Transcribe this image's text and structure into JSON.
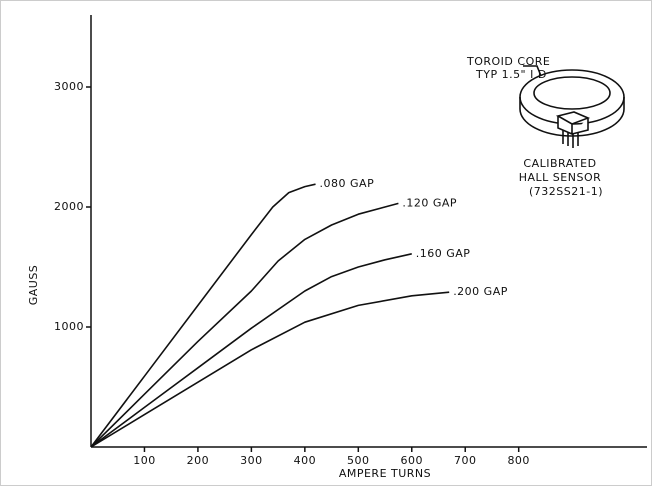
{
  "chart_data": {
    "type": "line",
    "x_label": "AMPERE TURNS",
    "y_label": "GAUSS",
    "xlim": [
      0,
      1040
    ],
    "ylim": [
      0,
      3600
    ],
    "xticks": [
      100,
      200,
      300,
      400,
      500,
      600,
      700,
      800
    ],
    "yticks": [
      1000,
      2000,
      3000
    ],
    "series": [
      {
        "name": ".080 GAP",
        "color": "#111111",
        "x": [
          0,
          100,
          200,
          300,
          340,
          370,
          400,
          420
        ],
        "values": [
          0,
          590,
          1180,
          1770,
          2000,
          2120,
          2170,
          2190
        ]
      },
      {
        "name": ".120 GAP",
        "color": "#111111",
        "x": [
          0,
          100,
          200,
          300,
          350,
          400,
          450,
          500,
          575
        ],
        "values": [
          0,
          440,
          880,
          1300,
          1550,
          1730,
          1850,
          1940,
          2030
        ]
      },
      {
        "name": ".160 GAP",
        "color": "#111111",
        "x": [
          0,
          100,
          200,
          300,
          400,
          450,
          500,
          550,
          600
        ],
        "values": [
          0,
          330,
          660,
          990,
          1300,
          1420,
          1500,
          1560,
          1610
        ]
      },
      {
        "name": ".200 GAP",
        "color": "#111111",
        "x": [
          0,
          100,
          200,
          300,
          400,
          500,
          600,
          670
        ],
        "values": [
          0,
          270,
          540,
          810,
          1040,
          1180,
          1260,
          1290
        ]
      }
    ],
    "annotations": [
      "TOROID CORE",
      "TYP 1.5\" I D",
      "CALIBRATED",
      "HALL SENSOR",
      "(732SS21-1)"
    ]
  }
}
